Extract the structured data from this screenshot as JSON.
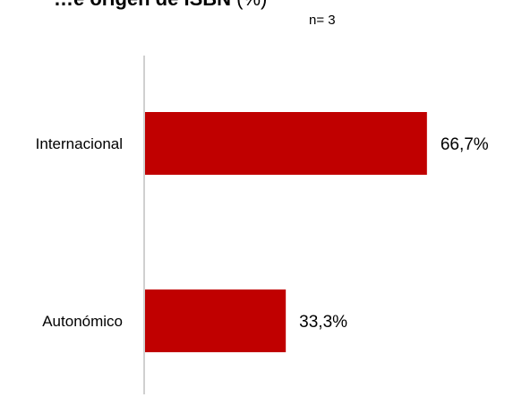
{
  "header": {
    "title": "…e origen de ISBN",
    "unit": "(%)",
    "n_label": "n=",
    "n_value": "3"
  },
  "chart_data": {
    "type": "bar",
    "orientation": "horizontal",
    "categories": [
      "Internacional",
      "Autonómico"
    ],
    "values": [
      66.7,
      33.3
    ],
    "value_labels": [
      "66,7%",
      "33,3%"
    ],
    "xlim": [
      0,
      100
    ],
    "grid": false,
    "legend": "none",
    "colors": {
      "bar": "#c00000",
      "axis": "#d0d0d0"
    }
  }
}
